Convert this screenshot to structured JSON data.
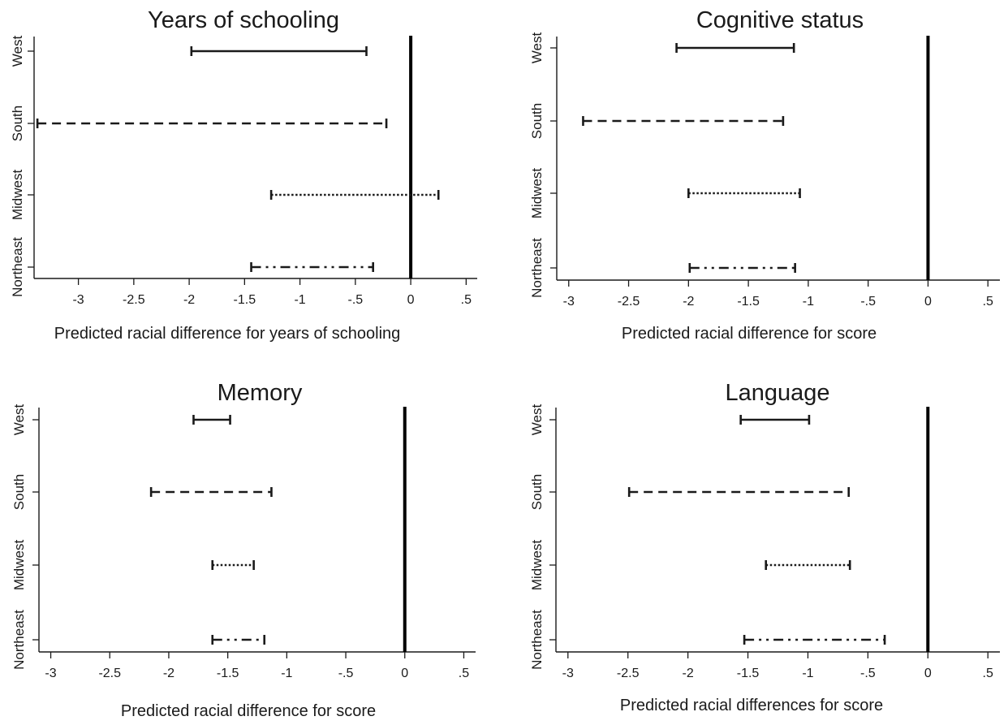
{
  "chart_data": [
    {
      "type": "interval",
      "title": "Years of schooling",
      "xlabel": "Predicted racial difference for years of schooling",
      "ylabel": "",
      "xlim": [
        -3.4,
        0.6
      ],
      "xticks": [
        "-3",
        "-2.5",
        "-2",
        "-1.5",
        "-1",
        "-.5",
        "0",
        ".5"
      ],
      "xtick_values": [
        -3,
        -2.5,
        -2,
        -1.5,
        -1,
        -0.5,
        0,
        0.5
      ],
      "reference_line": 0,
      "categories": [
        "West",
        "South",
        "Midwest",
        "Northeast"
      ],
      "series": [
        {
          "category": "West",
          "low": -1.98,
          "high": -0.4,
          "line_style": "solid"
        },
        {
          "category": "South",
          "low": -3.37,
          "high": -0.22,
          "line_style": "dashed"
        },
        {
          "category": "Midwest",
          "low": -1.26,
          "high": 0.25,
          "line_style": "dotted"
        },
        {
          "category": "Northeast",
          "low": -1.44,
          "high": -0.34,
          "line_style": "dash-dot-dot"
        }
      ]
    },
    {
      "type": "interval",
      "title": "Cognitive status",
      "xlabel": "Predicted racial difference for score",
      "ylabel": "",
      "xlim": [
        -3.1,
        0.6
      ],
      "xticks": [
        "-3",
        "-2.5",
        "-2",
        "-1.5",
        "-1",
        "-.5",
        "0",
        ".5"
      ],
      "xtick_values": [
        -3,
        -2.5,
        -2,
        -1.5,
        -1,
        -0.5,
        0,
        0.5
      ],
      "reference_line": 0,
      "categories": [
        "West",
        "South",
        "Midwest",
        "Northeast"
      ],
      "series": [
        {
          "category": "West",
          "low": -2.1,
          "high": -1.12,
          "line_style": "solid"
        },
        {
          "category": "South",
          "low": -2.88,
          "high": -1.21,
          "line_style": "dashed"
        },
        {
          "category": "Midwest",
          "low": -2.0,
          "high": -1.07,
          "line_style": "dotted"
        },
        {
          "category": "Northeast",
          "low": -1.99,
          "high": -1.11,
          "line_style": "dash-dot-dot"
        }
      ]
    },
    {
      "type": "interval",
      "title": "Memory",
      "xlabel": "Predicted racial difference for score",
      "ylabel": "",
      "xlim": [
        -3.1,
        0.6
      ],
      "xticks": [
        "-3",
        "-2.5",
        "-2",
        "-1.5",
        "-1",
        "-.5",
        "0",
        ".5"
      ],
      "xtick_values": [
        -3,
        -2.5,
        -2,
        -1.5,
        -1,
        -0.5,
        0,
        0.5
      ],
      "reference_line": 0,
      "categories": [
        "West",
        "South",
        "Midwest",
        "Northeast"
      ],
      "series": [
        {
          "category": "West",
          "low": -1.79,
          "high": -1.48,
          "line_style": "solid"
        },
        {
          "category": "South",
          "low": -2.15,
          "high": -1.13,
          "line_style": "dashed"
        },
        {
          "category": "Midwest",
          "low": -1.63,
          "high": -1.28,
          "line_style": "dotted"
        },
        {
          "category": "Northeast",
          "low": -1.63,
          "high": -1.19,
          "line_style": "dash-dot-dot"
        }
      ]
    },
    {
      "type": "interval",
      "title": "Language",
      "xlabel": "Predicted racial differences for score",
      "ylabel": "",
      "xlim": [
        -3.1,
        0.6
      ],
      "xticks": [
        "-3",
        "-2.5",
        "-2",
        "-1.5",
        "-1",
        "-.5",
        "0",
        ".5"
      ],
      "xtick_values": [
        -3,
        -2.5,
        -2,
        -1.5,
        -1,
        -0.5,
        0,
        0.5
      ],
      "reference_line": 0,
      "categories": [
        "West",
        "South",
        "Midwest",
        "Northeast"
      ],
      "series": [
        {
          "category": "West",
          "low": -1.56,
          "high": -0.99,
          "line_style": "solid"
        },
        {
          "category": "South",
          "low": -2.49,
          "high": -0.66,
          "line_style": "dashed"
        },
        {
          "category": "Midwest",
          "low": -1.35,
          "high": -0.65,
          "line_style": "dotted"
        },
        {
          "category": "Northeast",
          "low": -1.53,
          "high": -0.36,
          "line_style": "dash-dot-dot"
        }
      ]
    }
  ]
}
